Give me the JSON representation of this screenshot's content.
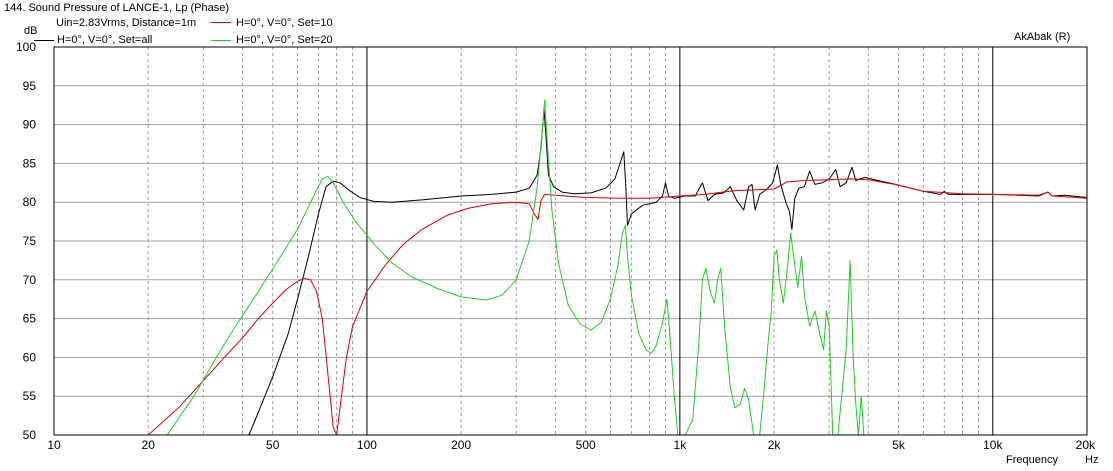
{
  "chart_data": {
    "type": "line",
    "title": "144. Sound Pressure of LANCE-1, Lp (Phase)",
    "subtitle": "Uin=2.83Vrms, Distance=1m",
    "brand": "AkAbak (R)",
    "ylabel": "dB",
    "xlabel": "Frequency",
    "x_unit": "Hz",
    "x_scale": "log",
    "xlim": [
      10,
      20000
    ],
    "ylim": [
      50,
      100
    ],
    "grid": true,
    "legend_placement": "top-left",
    "y_ticks": [
      "50",
      "55",
      "60",
      "65",
      "70",
      "75",
      "80",
      "85",
      "90",
      "95",
      "100"
    ],
    "y_tick_values": [
      50,
      55,
      60,
      65,
      70,
      75,
      80,
      85,
      90,
      95,
      100
    ],
    "x_tick_labels": [
      "10",
      "20",
      "50",
      "100",
      "200",
      "500",
      "1k",
      "2k",
      "5k",
      "10k",
      "20k"
    ],
    "x_tick_values": [
      10,
      20,
      50,
      100,
      200,
      500,
      1000,
      2000,
      5000,
      10000,
      20000
    ],
    "series": [
      {
        "name": "H=0°, V=0°, Set=all",
        "color": "#000000",
        "points": [
          [
            42,
            50
          ],
          [
            44,
            52
          ],
          [
            50,
            57.5
          ],
          [
            56,
            63
          ],
          [
            60,
            67.5
          ],
          [
            65,
            73
          ],
          [
            70,
            78.5
          ],
          [
            74,
            82
          ],
          [
            78,
            82.7
          ],
          [
            82,
            82.5
          ],
          [
            88,
            81.5
          ],
          [
            95,
            80.6
          ],
          [
            105,
            80.1
          ],
          [
            120,
            80
          ],
          [
            150,
            80.3
          ],
          [
            200,
            80.8
          ],
          [
            250,
            81
          ],
          [
            300,
            81.3
          ],
          [
            330,
            81.8
          ],
          [
            350,
            83.5
          ],
          [
            360,
            87
          ],
          [
            368,
            92
          ],
          [
            374,
            88
          ],
          [
            380,
            83.5
          ],
          [
            395,
            82
          ],
          [
            420,
            81.3
          ],
          [
            460,
            81.1
          ],
          [
            520,
            81.2
          ],
          [
            580,
            81.8
          ],
          [
            620,
            83
          ],
          [
            650,
            85.5
          ],
          [
            662,
            86.5
          ],
          [
            672,
            82
          ],
          [
            680,
            77
          ],
          [
            700,
            78.5
          ],
          [
            760,
            79.6
          ],
          [
            840,
            80
          ],
          [
            880,
            80.8
          ],
          [
            900,
            82.5
          ],
          [
            920,
            80.8
          ],
          [
            960,
            80.5
          ],
          [
            1040,
            80.8
          ],
          [
            1120,
            80.8
          ],
          [
            1180,
            82.5
          ],
          [
            1230,
            80.2
          ],
          [
            1290,
            81
          ],
          [
            1380,
            81.2
          ],
          [
            1450,
            82
          ],
          [
            1520,
            80.2
          ],
          [
            1600,
            79
          ],
          [
            1660,
            82
          ],
          [
            1700,
            82.3
          ],
          [
            1740,
            79
          ],
          [
            1800,
            81
          ],
          [
            1900,
            81.7
          ],
          [
            1980,
            82.5
          ],
          [
            2050,
            84.8
          ],
          [
            2100,
            82.3
          ],
          [
            2180,
            80
          ],
          [
            2240,
            78.8
          ],
          [
            2280,
            76.5
          ],
          [
            2330,
            80.5
          ],
          [
            2400,
            81.8
          ],
          [
            2500,
            82
          ],
          [
            2600,
            84
          ],
          [
            2700,
            82.3
          ],
          [
            2850,
            82.5
          ],
          [
            3000,
            83
          ],
          [
            3150,
            84.2
          ],
          [
            3250,
            82
          ],
          [
            3400,
            82.5
          ],
          [
            3550,
            84.5
          ],
          [
            3650,
            82.8
          ],
          [
            3900,
            83.2
          ],
          [
            4300,
            82.8
          ],
          [
            5000,
            82.2
          ],
          [
            6000,
            81.4
          ],
          [
            6800,
            81
          ],
          [
            7000,
            81.4
          ],
          [
            7200,
            81
          ],
          [
            8000,
            81
          ],
          [
            10000,
            81
          ],
          [
            12000,
            80.9
          ],
          [
            14000,
            80.8
          ],
          [
            15000,
            81.3
          ],
          [
            15500,
            80.8
          ],
          [
            17000,
            80.9
          ],
          [
            20000,
            80.6
          ]
        ]
      },
      {
        "name": "H=0°, V=0°, Set=10",
        "color": "#dd0000",
        "points": [
          [
            20,
            50
          ],
          [
            22,
            51.5
          ],
          [
            25,
            53.5
          ],
          [
            30,
            57
          ],
          [
            35,
            60
          ],
          [
            40,
            62.5
          ],
          [
            45,
            65
          ],
          [
            50,
            67
          ],
          [
            55,
            68.7
          ],
          [
            60,
            69.8
          ],
          [
            63,
            70.2
          ],
          [
            66,
            70
          ],
          [
            69,
            68.5
          ],
          [
            72,
            65
          ],
          [
            75,
            58
          ],
          [
            78,
            51
          ],
          [
            80,
            50
          ],
          [
            82,
            53.5
          ],
          [
            86,
            60
          ],
          [
            90,
            64
          ],
          [
            100,
            68.5
          ],
          [
            115,
            72
          ],
          [
            130,
            74.5
          ],
          [
            150,
            76.5
          ],
          [
            180,
            78.3
          ],
          [
            210,
            79.2
          ],
          [
            250,
            79.8
          ],
          [
            300,
            80
          ],
          [
            330,
            79.8
          ],
          [
            345,
            78.3
          ],
          [
            352,
            77.8
          ],
          [
            360,
            80.2
          ],
          [
            370,
            81
          ],
          [
            400,
            80.9
          ],
          [
            500,
            80.6
          ],
          [
            650,
            80.5
          ],
          [
            800,
            80.5
          ],
          [
            1000,
            80.8
          ],
          [
            1200,
            81
          ],
          [
            1500,
            81.5
          ],
          [
            2000,
            81.7
          ],
          [
            2200,
            82.6
          ],
          [
            2500,
            82.8
          ],
          [
            3000,
            82.9
          ],
          [
            3500,
            83
          ],
          [
            4000,
            82.9
          ],
          [
            5000,
            82.2
          ],
          [
            6000,
            81.4
          ],
          [
            8000,
            81.1
          ],
          [
            10000,
            81
          ],
          [
            14000,
            80.9
          ],
          [
            15000,
            81.3
          ],
          [
            15500,
            80.8
          ],
          [
            20000,
            80.5
          ]
        ]
      },
      {
        "name": "H=0°, V=0°, Set=20",
        "color": "#22cc22",
        "points": [
          [
            23,
            50
          ],
          [
            28,
            55
          ],
          [
            33,
            60
          ],
          [
            38,
            64
          ],
          [
            45,
            68.5
          ],
          [
            52,
            72.5
          ],
          [
            60,
            76.5
          ],
          [
            67,
            80.5
          ],
          [
            72,
            83
          ],
          [
            75,
            83.3
          ],
          [
            78,
            82.5
          ],
          [
            84,
            80
          ],
          [
            92,
            77.5
          ],
          [
            105,
            74.7
          ],
          [
            120,
            72.2
          ],
          [
            140,
            70.3
          ],
          [
            170,
            68.8
          ],
          [
            200,
            67.8
          ],
          [
            240,
            67.4
          ],
          [
            270,
            68
          ],
          [
            300,
            70
          ],
          [
            330,
            75
          ],
          [
            350,
            82
          ],
          [
            362,
            88.5
          ],
          [
            370,
            93.2
          ],
          [
            378,
            87
          ],
          [
            390,
            79
          ],
          [
            410,
            72
          ],
          [
            440,
            66.7
          ],
          [
            480,
            64.3
          ],
          [
            520,
            63.5
          ],
          [
            560,
            64.5
          ],
          [
            600,
            67.5
          ],
          [
            635,
            72
          ],
          [
            655,
            76
          ],
          [
            670,
            77
          ],
          [
            680,
            73
          ],
          [
            700,
            68
          ],
          [
            740,
            63
          ],
          [
            780,
            61
          ],
          [
            810,
            60.5
          ],
          [
            840,
            61.5
          ],
          [
            880,
            64.5
          ],
          [
            910,
            67.5
          ],
          [
            935,
            61.5
          ],
          [
            960,
            55
          ],
          [
            985,
            50
          ],
          [
            1040,
            50
          ],
          [
            1100,
            52
          ],
          [
            1150,
            62
          ],
          [
            1180,
            70
          ],
          [
            1210,
            71.5
          ],
          [
            1250,
            68.5
          ],
          [
            1290,
            67
          ],
          [
            1320,
            70
          ],
          [
            1350,
            71.5
          ],
          [
            1390,
            64
          ],
          [
            1450,
            56
          ],
          [
            1500,
            53.5
          ],
          [
            1560,
            54
          ],
          [
            1610,
            56
          ],
          [
            1660,
            54.5
          ],
          [
            1720,
            50
          ],
          [
            1800,
            50
          ],
          [
            1860,
            56
          ],
          [
            1910,
            61.5
          ],
          [
            1960,
            66
          ],
          [
            2000,
            73
          ],
          [
            2040,
            73.8
          ],
          [
            2080,
            70
          ],
          [
            2140,
            67
          ],
          [
            2200,
            71
          ],
          [
            2260,
            76
          ],
          [
            2310,
            73
          ],
          [
            2380,
            69
          ],
          [
            2450,
            73
          ],
          [
            2500,
            68
          ],
          [
            2600,
            64
          ],
          [
            2700,
            66
          ],
          [
            2800,
            63
          ],
          [
            2880,
            61
          ],
          [
            2940,
            66
          ],
          [
            3000,
            64
          ],
          [
            3080,
            50
          ],
          [
            3200,
            50
          ],
          [
            3400,
            61
          ],
          [
            3500,
            72.5
          ],
          [
            3580,
            60
          ],
          [
            3650,
            54
          ],
          [
            3720,
            50
          ],
          [
            3800,
            55
          ],
          [
            3870,
            50
          ],
          [
            20000,
            50
          ]
        ]
      }
    ]
  }
}
